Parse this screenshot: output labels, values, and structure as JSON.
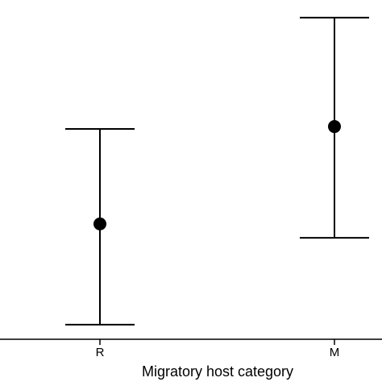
{
  "chart_data": {
    "type": "errorbar",
    "x_label": "Migratory host category",
    "categories": [
      "R",
      "M"
    ],
    "values": [
      34,
      62.7
    ],
    "lower": [
      4.3,
      29.9
    ],
    "upper": [
      62,
      94.8
    ],
    "color": "#000000",
    "ylim": [
      0,
      100
    ]
  }
}
